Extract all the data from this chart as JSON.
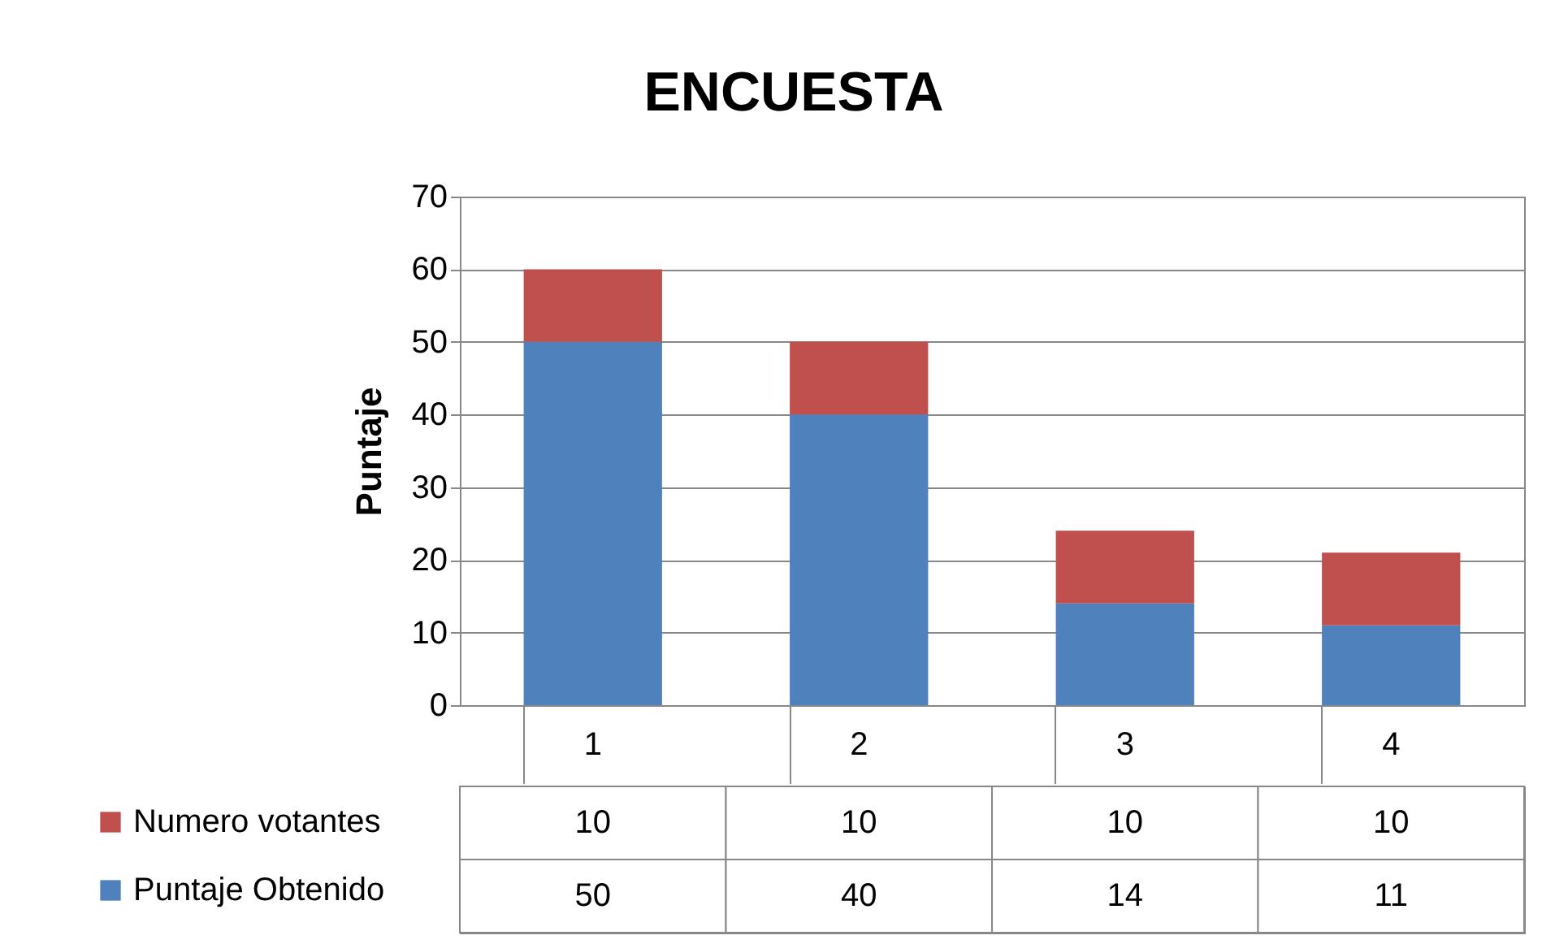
{
  "chart_data": {
    "type": "bar",
    "title": "ENCUESTA",
    "ylabel": "Puntaje",
    "categories": [
      "1",
      "2",
      "3",
      "4"
    ],
    "stacked": true,
    "series": [
      {
        "name": "Puntaje Obtenido",
        "color": "#4f81bd",
        "values": [
          50,
          40,
          14,
          11
        ]
      },
      {
        "name": "Numero votantes",
        "color": "#c0504d",
        "values": [
          10,
          10,
          10,
          10
        ]
      }
    ],
    "ylim": [
      0,
      70
    ],
    "yticks": [
      0,
      10,
      20,
      30,
      40,
      50,
      60,
      70
    ],
    "grid": "y",
    "legend": "bottom left",
    "data_labels": true
  }
}
